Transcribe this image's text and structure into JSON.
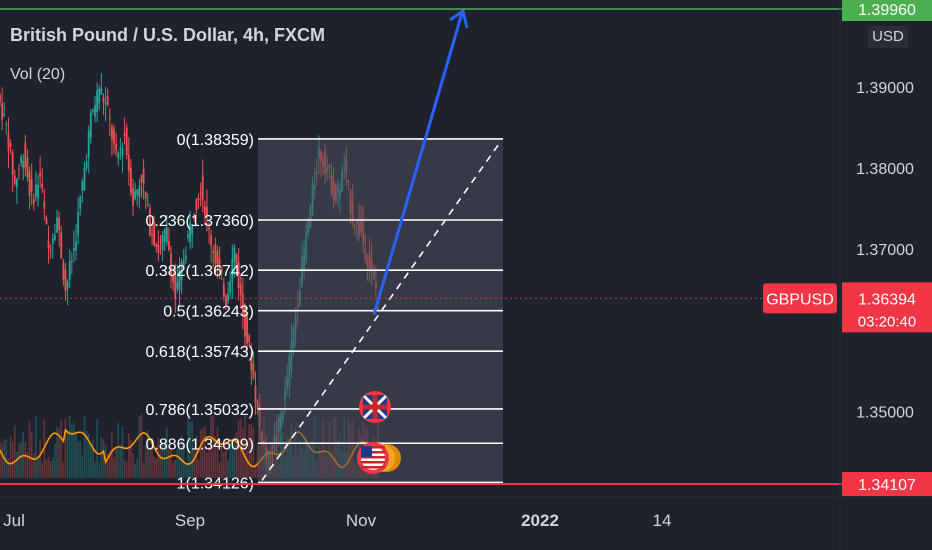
{
  "header": {
    "title": "British Pound / U.S. Dollar, 4h, FXCM",
    "indicator": "Vol (20)"
  },
  "currency_button": "USD",
  "symbol_badge": "GBPUSD",
  "colors": {
    "bg": "#1e222d",
    "up": "#26a69a",
    "down": "#ef5350",
    "fib_fill": "#4a4f5c",
    "fib_line": "#ffffff",
    "arrow": "#2962ff",
    "target": "#4caf50",
    "support": "#f23645",
    "volume_ma": "#ff9800"
  },
  "chart_data": {
    "type": "candlestick",
    "symbol": "GBPUSD",
    "timeframe": "4h",
    "ylim": [
      1.3385,
      1.401
    ],
    "y_ticks": [
      "1.39000",
      "1.38000",
      "1.37000",
      "1.35000"
    ],
    "x_ticks": [
      "Jul",
      "Sep",
      "Nov",
      "2022",
      "14"
    ],
    "price_series": [
      [
        0,
        1.389
      ],
      [
        4,
        1.385
      ],
      [
        8,
        1.378
      ],
      [
        12,
        1.382
      ],
      [
        16,
        1.376
      ],
      [
        20,
        1.379
      ],
      [
        24,
        1.37
      ],
      [
        28,
        1.374
      ],
      [
        32,
        1.365
      ],
      [
        36,
        1.37
      ],
      [
        40,
        1.378
      ],
      [
        44,
        1.386
      ],
      [
        48,
        1.39
      ],
      [
        52,
        1.387
      ],
      [
        56,
        1.381
      ],
      [
        60,
        1.384
      ],
      [
        64,
        1.376
      ],
      [
        68,
        1.379
      ],
      [
        72,
        1.373
      ],
      [
        76,
        1.37
      ],
      [
        80,
        1.372
      ],
      [
        84,
        1.364
      ],
      [
        88,
        1.369
      ],
      [
        92,
        1.374
      ],
      [
        96,
        1.378
      ],
      [
        100,
        1.372
      ],
      [
        104,
        1.368
      ],
      [
        108,
        1.364
      ],
      [
        112,
        1.37
      ],
      [
        116,
        1.362
      ],
      [
        120,
        1.356
      ],
      [
        124,
        1.348
      ],
      [
        128,
        1.344
      ],
      [
        132,
        1.347
      ],
      [
        136,
        1.352
      ],
      [
        140,
        1.36
      ],
      [
        144,
        1.368
      ],
      [
        148,
        1.375
      ],
      [
        152,
        1.382
      ],
      [
        156,
        1.38
      ],
      [
        160,
        1.376
      ],
      [
        164,
        1.38
      ],
      [
        168,
        1.374
      ],
      [
        172,
        1.372
      ],
      [
        176,
        1.368
      ],
      [
        180,
        1.3639
      ]
    ],
    "fibonacci": [
      {
        "label": "0(1.38359)",
        "price": 1.38359
      },
      {
        "label": "0.236(1.37360)",
        "price": 1.3736
      },
      {
        "label": "0.382(1.36742)",
        "price": 1.36742
      },
      {
        "label": "0.5(1.36243)",
        "price": 1.36243
      },
      {
        "label": "0.618(1.35743)",
        "price": 1.35743
      },
      {
        "label": "0.786(1.35032)",
        "price": 1.35032
      },
      {
        "label": "0.886(1.34609)",
        "price": 1.34609
      },
      {
        "label": "1(1.34126)",
        "price": 1.34126
      }
    ],
    "current_price": {
      "value": 1.36394,
      "label": "1.36394",
      "countdown": "03:20:40"
    },
    "target_price": {
      "value": 1.3996,
      "label": "1.39960"
    },
    "support_price": {
      "value": 1.34107,
      "label": "1.34107"
    },
    "arrow": {
      "from": 1.36194,
      "to": 1.3996
    }
  }
}
